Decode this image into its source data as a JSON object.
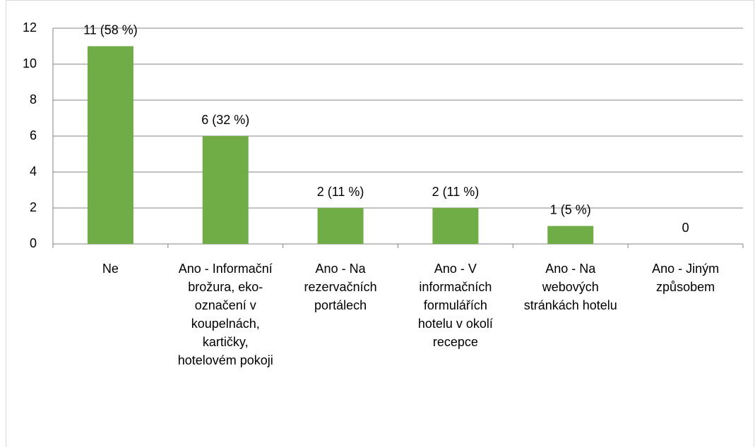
{
  "chart_data": {
    "type": "bar",
    "categories": [
      "Ne",
      "Ano - Informační brožura, eko-označení v koupelnách, kartičky, hotelovém pokoji",
      "Ano - Na rezervačních portálech",
      "Ano - V informačních formulářích hotelu v okolí recepce",
      "Ano - Na webových stránkách hotelu",
      "Ano - Jiným způsobem"
    ],
    "values": [
      11,
      6,
      2,
      2,
      1,
      0
    ],
    "value_labels": [
      "11 (58 %)",
      "6 (32 %)",
      "2 (11 %)",
      "2 (11 %)",
      "1 (5 %)",
      "0"
    ],
    "color": "#70ad47",
    "ylim": [
      0,
      12
    ],
    "yticks": [
      0,
      2,
      4,
      6,
      8,
      10,
      12
    ],
    "grid": true
  }
}
